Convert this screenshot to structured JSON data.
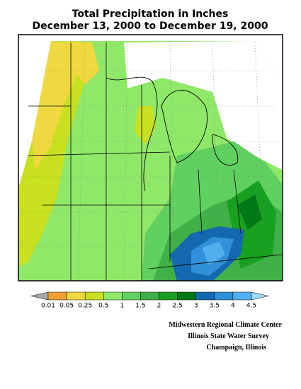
{
  "header": {
    "title": [
      "Total Precipitation in Inches",
      "December 13, 2000 to December 19, 2000"
    ]
  },
  "legend": {
    "labels": [
      "0.01",
      "0.05",
      "0.25",
      "0.5",
      "1",
      "1.5",
      "2",
      "2.5",
      "3",
      "3.5",
      "4",
      "4.5"
    ],
    "colors": [
      "#a8a8a8",
      "#f0a030",
      "#f0d840",
      "#c8e020",
      "#90e868",
      "#60d060",
      "#40b048",
      "#18a020",
      "#007818",
      "#1468b0",
      "#3090d8",
      "#50b0f0",
      "#a0d8f8"
    ]
  },
  "credits": [
    "Midwestern Regional Climate Center",
    "Illinois State Water Survey",
    "Champaign, Illinois"
  ]
}
